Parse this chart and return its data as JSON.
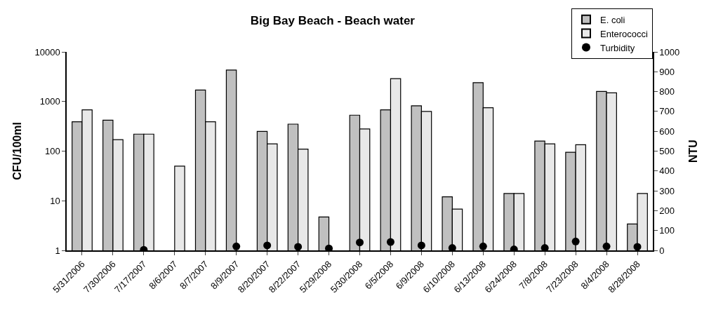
{
  "chart_data": {
    "type": "bar",
    "title": "Big Bay Beach - Beach water",
    "ylabel": "CFU/100ml",
    "y2label": "NTU",
    "categories": [
      "5/31/2006",
      "7/30/2006",
      "7/17/2007",
      "8/6/2007",
      "8/7/2007",
      "8/9/2007",
      "8/20/2007",
      "8/22/2007",
      "5/29/2008",
      "5/30/2008",
      "6/5/2008",
      "6/9/2008",
      "6/10/2008",
      "6/13/2008",
      "6/24/2008",
      "7/8/2008",
      "7/23/2008",
      "8/4/2008",
      "8/28/2008"
    ],
    "series": [
      {
        "name": "E. coli",
        "color": "#c0c0c0",
        "values": [
          390,
          420,
          220,
          null,
          1700,
          4300,
          250,
          350,
          4.7,
          530,
          680,
          820,
          12,
          2400,
          14,
          160,
          95,
          1600,
          3.4
        ]
      },
      {
        "name": "Enterococci",
        "color": "#e8e8e8",
        "values": [
          680,
          170,
          220,
          50,
          390,
          null,
          140,
          110,
          null,
          280,
          2900,
          630,
          6.8,
          750,
          14,
          140,
          135,
          1500,
          14
        ]
      },
      {
        "name": "Turbidity",
        "color": "#000000",
        "type": "scatter",
        "axis": "y2",
        "marker": "circle",
        "values": [
          null,
          null,
          3,
          null,
          null,
          20,
          25,
          18,
          10,
          40,
          42,
          25,
          12,
          20,
          5,
          12,
          45,
          20,
          18
        ]
      }
    ],
    "log": "y",
    "ylim": [
      1,
      10000
    ],
    "yticks": [
      1,
      10,
      100,
      1000,
      10000
    ],
    "y2lim": [
      0,
      1000
    ],
    "y2ticks": [
      0,
      100,
      200,
      300,
      400,
      500,
      600,
      700,
      800,
      900,
      1000
    ],
    "legend": "top right"
  }
}
